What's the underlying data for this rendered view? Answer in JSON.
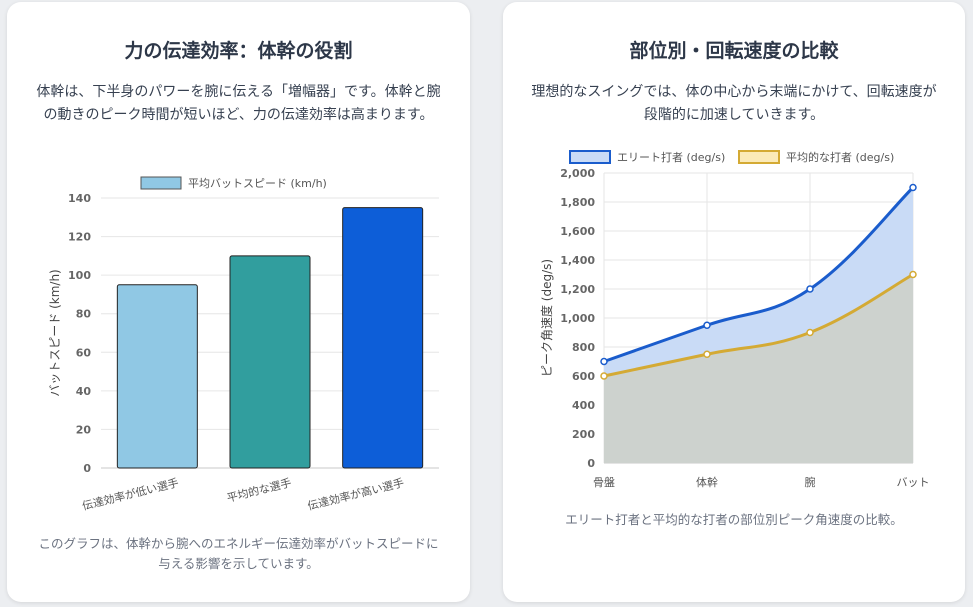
{
  "left_card": {
    "title": "力の伝達効率：体幹の役割",
    "description": "体幹は、下半身のパワーを腕に伝える「増幅器」です。体幹と腕の動きのピーク時間が短いほど、力の伝達効率は高まります。",
    "caption": "このグラフは、体幹から腕へのエネルギー伝達効率がバットスピードに与える影響を示しています。"
  },
  "right_card": {
    "title": "部位別・回転速度の比較",
    "description": "理想的なスイングでは、体の中心から末端にかけて、回転速度が段階的に加速していきます。",
    "caption": "エリート打者と平均的な打者の部位別ピーク角速度の比較。"
  },
  "chart_data": [
    {
      "type": "bar",
      "categories": [
        "伝達効率が低い選手",
        "平均的な選手",
        "伝達効率が高い選手"
      ],
      "series": [
        {
          "name": "平均バットスピード (km/h)",
          "values": [
            95,
            110,
            135
          ]
        }
      ],
      "colors": [
        "#90c8e4",
        "#319e9e",
        "#0d5ed8"
      ],
      "ylabel": "バットスピード (km/h)",
      "ylim": [
        0,
        140
      ],
      "yticks": [
        "0",
        "20",
        "40",
        "60",
        "80",
        "100",
        "120",
        "140"
      ],
      "grid": true,
      "legend": "top"
    },
    {
      "type": "area",
      "categories": [
        "骨盤",
        "体幹",
        "腕",
        "バット"
      ],
      "series": [
        {
          "name": "エリート打者 (deg/s)",
          "values": [
            700,
            950,
            1200,
            1900
          ],
          "color": "#1a5ccc",
          "fill": "#c9dbf6"
        },
        {
          "name": "平均的な打者 (deg/s)",
          "values": [
            600,
            750,
            900,
            1300
          ],
          "color": "#d4aa34",
          "fill": "#cdd2ce"
        }
      ],
      "ylabel": "ピーク角速度 (deg/s)",
      "ylim": [
        0,
        2000
      ],
      "yticks": [
        "0",
        "200",
        "400",
        "600",
        "800",
        "1,000",
        "1,200",
        "1,400",
        "1,600",
        "1,800",
        "2,000"
      ],
      "grid": true,
      "legend": "top"
    }
  ]
}
